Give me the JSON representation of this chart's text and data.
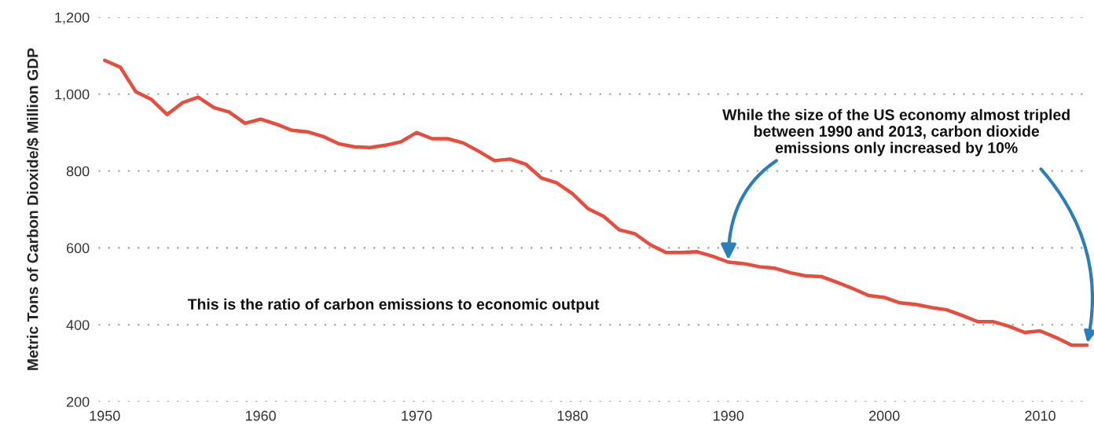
{
  "chart_data": {
    "type": "line",
    "ylabel": "Metric Tons of Carbon Dioxide/$ Million GDP",
    "x": [
      1950,
      1951,
      1952,
      1953,
      1954,
      1955,
      1956,
      1957,
      1958,
      1959,
      1960,
      1961,
      1962,
      1963,
      1964,
      1965,
      1966,
      1967,
      1968,
      1969,
      1970,
      1971,
      1972,
      1973,
      1974,
      1975,
      1976,
      1977,
      1978,
      1979,
      1980,
      1981,
      1982,
      1983,
      1984,
      1985,
      1986,
      1987,
      1988,
      1989,
      1990,
      1991,
      1992,
      1993,
      1994,
      1995,
      1996,
      1997,
      1998,
      1999,
      2000,
      2001,
      2002,
      2003,
      2004,
      2005,
      2006,
      2007,
      2008,
      2009,
      2010,
      2011,
      2012,
      2013
    ],
    "series": [
      {
        "color": "#e84c3d",
        "values": [
          1088,
          1070,
          1006,
          986,
          947,
          978,
          992,
          965,
          953,
          924,
          935,
          922,
          906,
          902,
          890,
          871,
          863,
          861,
          867,
          876,
          900,
          884,
          884,
          873,
          851,
          827,
          831,
          818,
          782,
          769,
          741,
          702,
          682,
          647,
          637,
          608,
          588,
          588,
          590,
          578,
          563,
          559,
          551,
          547,
          535,
          527,
          525,
          510,
          494,
          476,
          471,
          457,
          453,
          445,
          439,
          424,
          408,
          408,
          396,
          380,
          384,
          367,
          347,
          347
        ]
      }
    ],
    "xlim": [
      1949.6,
      2013.1
    ],
    "ylim": [
      200,
      1200
    ],
    "xticks": [
      1950,
      1960,
      1970,
      1980,
      1990,
      2000,
      2010
    ],
    "yticks": [
      {
        "value": 200,
        "label": "200"
      },
      {
        "value": 400,
        "label": "400"
      },
      {
        "value": 600,
        "label": "600"
      },
      {
        "value": 800,
        "label": "800"
      },
      {
        "value": 1000,
        "label": "1,000"
      },
      {
        "value": 1200,
        "label": "1,200"
      }
    ],
    "grid": "y",
    "legend": false,
    "annotations": [
      {
        "text": "While the size of the US economy almost tripled\nbetween 1990 and 2013, carbon dioxide\nemissions only increased by 10%",
        "x": 1990,
        "y": 563
      },
      "This is the ratio of carbon emissions to economic output"
    ]
  }
}
